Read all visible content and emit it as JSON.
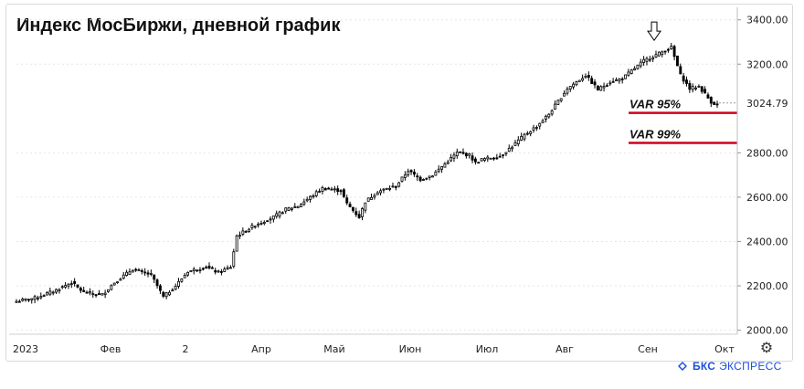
{
  "chart_data": {
    "type": "candlestick",
    "title": "Индекс МосБиржи, дневной график",
    "ylim": [
      1990,
      3440
    ],
    "y_ticks": [
      "3400.00",
      "3200.00",
      "3024.79",
      "2800.00",
      "2600.00",
      "2400.00",
      "2200.00",
      "2000.00"
    ],
    "y_tick_values": [
      3400,
      3200,
      2800,
      2600,
      2400,
      2200,
      2000
    ],
    "last_value": 3024.79,
    "x_ticks": [
      "2023",
      "Фев",
      "2",
      "Апр",
      "Май",
      "Июн",
      "Июл",
      "Авг",
      "Сен",
      "Окт"
    ],
    "anchors": [
      [
        0,
        2130
      ],
      [
        6,
        2145
      ],
      [
        12,
        2175
      ],
      [
        18,
        2215
      ],
      [
        22,
        2170
      ],
      [
        28,
        2160
      ],
      [
        32,
        2215
      ],
      [
        38,
        2275
      ],
      [
        44,
        2250
      ],
      [
        48,
        2150
      ],
      [
        52,
        2200
      ],
      [
        56,
        2265
      ],
      [
        62,
        2285
      ],
      [
        66,
        2260
      ],
      [
        70,
        2285
      ],
      [
        72,
        2425
      ],
      [
        78,
        2475
      ],
      [
        84,
        2510
      ],
      [
        88,
        2545
      ],
      [
        92,
        2560
      ],
      [
        96,
        2600
      ],
      [
        100,
        2640
      ],
      [
        106,
        2630
      ],
      [
        108,
        2570
      ],
      [
        112,
        2510
      ],
      [
        114,
        2580
      ],
      [
        118,
        2625
      ],
      [
        124,
        2650
      ],
      [
        128,
        2720
      ],
      [
        132,
        2680
      ],
      [
        136,
        2700
      ],
      [
        140,
        2750
      ],
      [
        144,
        2800
      ],
      [
        148,
        2790
      ],
      [
        150,
        2755
      ],
      [
        152,
        2770
      ],
      [
        158,
        2785
      ],
      [
        162,
        2830
      ],
      [
        166,
        2880
      ],
      [
        170,
        2920
      ],
      [
        174,
        2975
      ],
      [
        180,
        3090
      ],
      [
        184,
        3130
      ],
      [
        186,
        3150
      ],
      [
        190,
        3085
      ],
      [
        194,
        3120
      ],
      [
        198,
        3135
      ],
      [
        201,
        3170
      ],
      [
        205,
        3215
      ],
      [
        208,
        3235
      ],
      [
        211,
        3255
      ],
      [
        214,
        3275
      ],
      [
        217,
        3150
      ],
      [
        220,
        3090
      ],
      [
        223,
        3100
      ],
      [
        225,
        3065
      ],
      [
        227,
        3030
      ],
      [
        229,
        3015
      ]
    ],
    "var_levels": [
      {
        "label": "VAR 95%",
        "value": 2980
      },
      {
        "label": "VAR 99%",
        "value": 2845
      }
    ],
    "marker": {
      "type": "down-arrow",
      "at_index": 209
    }
  },
  "brand": {
    "name": "БКС",
    "sub": "ЭКСПРЕСС",
    "color": "#1d4ed8"
  },
  "colors": {
    "candle_up_fill": "#ffffff",
    "candle_down_fill": "#000000",
    "candle_stroke": "#000000",
    "var_line": "#d0021b",
    "grid": "#e6e6e6"
  },
  "icons": {
    "settings": "gear-icon"
  }
}
